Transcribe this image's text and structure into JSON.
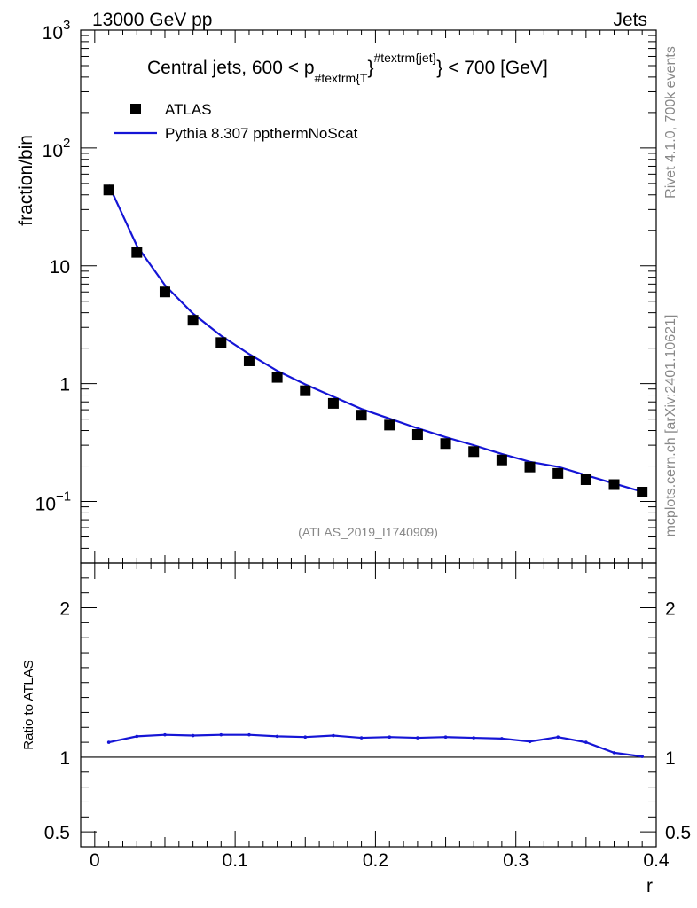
{
  "header": {
    "left": "13000 GeV pp",
    "right": "Jets"
  },
  "side_labels": {
    "rivet": "Rivet 4.1.0,  700k events",
    "mcplots": "mcplots.cern.ch [arXiv:2401.10621]"
  },
  "chart_data": [
    {
      "type": "scatter",
      "panel": "main",
      "title_main": "Central jets, 600 < p",
      "title_sub": "#textrm{T",
      "title_brace1": "}",
      "title_sup": "#textrm{jet}",
      "title_brace2": "}",
      "title_tail": " < 700 [GeV]",
      "ylabel": "fraction/bin",
      "yscale": "log",
      "ylim": [
        0.03,
        1000
      ],
      "xlim": [
        -0.01,
        0.4
      ],
      "yticks": [
        {
          "value": 1000,
          "base": "10",
          "exp": "3"
        },
        {
          "value": 100,
          "base": "10",
          "exp": "2"
        },
        {
          "value": 10,
          "base": "10",
          "exp": ""
        },
        {
          "value": 1,
          "base": "1",
          "exp": ""
        },
        {
          "value": 0.1,
          "base": "10",
          "exp": "−1"
        }
      ],
      "watermark": "(ATLAS_2019_I1740909)",
      "x": [
        0.01,
        0.03,
        0.05,
        0.07,
        0.09,
        0.11,
        0.13,
        0.15,
        0.17,
        0.19,
        0.21,
        0.23,
        0.25,
        0.27,
        0.29,
        0.31,
        0.33,
        0.35,
        0.37,
        0.39
      ],
      "series": [
        {
          "name": "ATLAS",
          "style": "markers",
          "color": "#000000",
          "values": [
            44,
            13,
            6.0,
            3.45,
            2.23,
            1.56,
            1.13,
            0.87,
            0.68,
            0.54,
            0.445,
            0.37,
            0.31,
            0.265,
            0.225,
            0.196,
            0.173,
            0.153,
            0.139,
            0.12
          ]
        },
        {
          "name": "Pythia 8.307 ppthermNoScat",
          "style": "line",
          "color": "#1515d6",
          "values": [
            48.5,
            14.8,
            6.85,
            3.93,
            2.55,
            1.78,
            1.285,
            0.985,
            0.775,
            0.61,
            0.505,
            0.418,
            0.351,
            0.3,
            0.253,
            0.217,
            0.197,
            0.167,
            0.142,
            0.121
          ]
        }
      ]
    },
    {
      "type": "line",
      "panel": "ratio",
      "ylabel": "Ratio to ATLAS",
      "xlabel": "r",
      "ylim": [
        0.4,
        2.3
      ],
      "xlim": [
        -0.01,
        0.4
      ],
      "yticks": [
        {
          "value": 0.5,
          "label": "0.5"
        },
        {
          "value": 1,
          "label": "1"
        },
        {
          "value": 2,
          "label": "2"
        }
      ],
      "xticks": [
        {
          "value": 0,
          "label": "0"
        },
        {
          "value": 0.1,
          "label": "0.1"
        },
        {
          "value": 0.2,
          "label": "0.2"
        },
        {
          "value": 0.3,
          "label": "0.3"
        },
        {
          "value": 0.4,
          "label": "0.4"
        }
      ],
      "reference": 1,
      "x": [
        0.01,
        0.03,
        0.05,
        0.07,
        0.09,
        0.11,
        0.13,
        0.15,
        0.17,
        0.19,
        0.21,
        0.23,
        0.25,
        0.27,
        0.29,
        0.31,
        0.33,
        0.35,
        0.37,
        0.39
      ],
      "series": [
        {
          "name": "Pythia 8.307 ppthermNoScat / ATLAS",
          "color": "#1515d6",
          "values": [
            1.1,
            1.14,
            1.15,
            1.145,
            1.15,
            1.15,
            1.14,
            1.135,
            1.145,
            1.13,
            1.135,
            1.13,
            1.135,
            1.13,
            1.125,
            1.105,
            1.135,
            1.1,
            1.03,
            1.005
          ]
        }
      ]
    }
  ]
}
